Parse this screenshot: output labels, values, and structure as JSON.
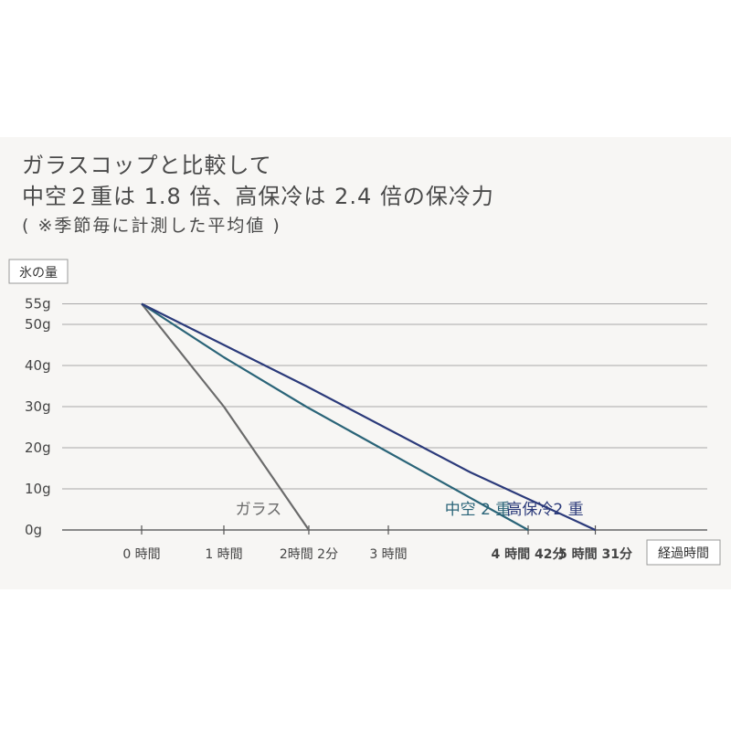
{
  "chart_data": {
    "type": "line",
    "title": "ガラスコップと比較して",
    "subtitle": "中空２重は 1.8 倍、高保冷は 2.4 倍の保冷力",
    "note": "( ※季節毎に計測した平均値 )",
    "ylabel": "氷の量",
    "xlabel": "経過時間",
    "ylim": [
      0,
      55
    ],
    "y_ticks": [
      {
        "value": 0,
        "label": "0g"
      },
      {
        "value": 10,
        "label": "10g"
      },
      {
        "value": 20,
        "label": "20g"
      },
      {
        "value": 30,
        "label": "30g"
      },
      {
        "value": 40,
        "label": "40g"
      },
      {
        "value": 50,
        "label": "50g"
      },
      {
        "value": 55,
        "label": "55g"
      }
    ],
    "x_ticks": [
      {
        "value": 0,
        "label": "0 時間",
        "style": "normal"
      },
      {
        "value": 1,
        "label": "1 時間",
        "style": "normal"
      },
      {
        "value": 2.033,
        "label": "2時間 2分",
        "style": "normal"
      },
      {
        "value": 3,
        "label": "3 時間",
        "style": "normal"
      },
      {
        "value": 4.7,
        "label": "4 時間 42分",
        "style": "teal"
      },
      {
        "value": 5.517,
        "label": "5 時間 31分",
        "style": "navy"
      }
    ],
    "grid": true,
    "series": [
      {
        "name": "ガラス",
        "color": "#6b6b6b",
        "points": [
          [
            0,
            55
          ],
          [
            1,
            30
          ],
          [
            2.033,
            0
          ]
        ]
      },
      {
        "name": "中空 2 重",
        "color": "#2a6478",
        "points": [
          [
            0,
            55
          ],
          [
            1,
            42
          ],
          [
            2,
            30
          ],
          [
            4.7,
            0
          ]
        ]
      },
      {
        "name": "高保冷2 重",
        "color": "#2b3a7a",
        "points": [
          [
            0,
            55
          ],
          [
            2,
            35
          ],
          [
            4,
            14
          ],
          [
            5.517,
            0
          ]
        ]
      }
    ]
  }
}
